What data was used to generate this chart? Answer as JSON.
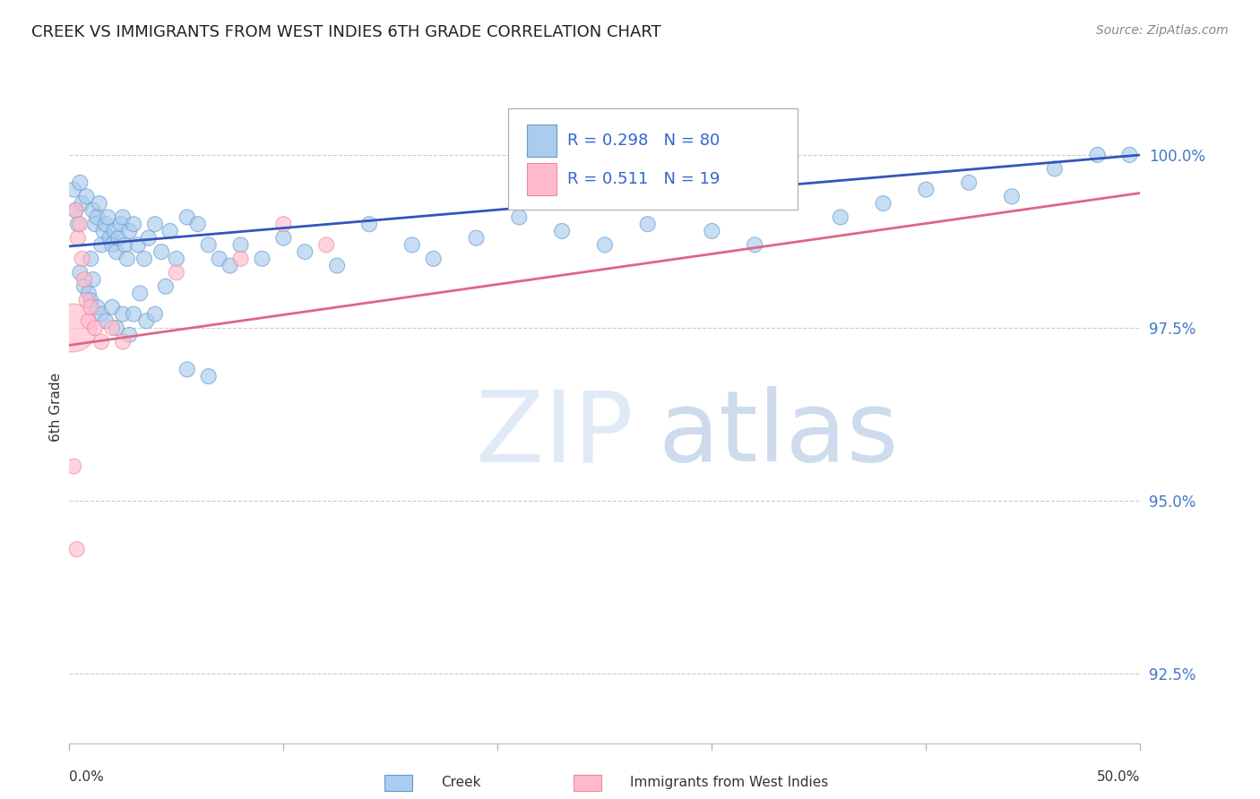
{
  "title": "CREEK VS IMMIGRANTS FROM WEST INDIES 6TH GRADE CORRELATION CHART",
  "source": "Source: ZipAtlas.com",
  "ylabel_left": "6th Grade",
  "xlim": [
    0.0,
    50.0
  ],
  "ylim": [
    91.5,
    101.2
  ],
  "yticks": [
    92.5,
    95.0,
    97.5,
    100.0
  ],
  "ytick_labels": [
    "92.5%",
    "95.0%",
    "97.5%",
    "100.0%"
  ],
  "creek_color": "#6699cc",
  "creek_color_fill": "#aabbdd",
  "immigrants_color": "#ee7799",
  "immigrants_color_fill": "#ffaabb",
  "trend_blue": "#3355bb",
  "trend_pink": "#dd6688",
  "legend_R_blue": "0.298",
  "legend_N_blue": "80",
  "legend_R_pink": "0.511",
  "legend_N_pink": "19",
  "bg_color": "#ffffff",
  "grid_color": "#cccccc",
  "blue_trend_y0": 98.68,
  "blue_trend_y1": 100.0,
  "pink_trend_y0": 97.25,
  "pink_trend_y1": 99.45,
  "creek_x": [
    0.2,
    0.3,
    0.4,
    0.5,
    0.6,
    0.8,
    1.0,
    1.1,
    1.2,
    1.3,
    1.4,
    1.5,
    1.6,
    1.7,
    1.8,
    1.9,
    2.0,
    2.1,
    2.2,
    2.3,
    2.4,
    2.5,
    2.6,
    2.7,
    2.8,
    3.0,
    3.2,
    3.5,
    3.7,
    4.0,
    4.3,
    4.7,
    5.0,
    5.5,
    6.0,
    6.5,
    7.0,
    7.5,
    8.0,
    9.0,
    10.0,
    11.0,
    12.5,
    14.0,
    16.0,
    17.0,
    19.0,
    21.0,
    23.0,
    25.0,
    27.0,
    30.0,
    32.0,
    36.0,
    38.0,
    40.0,
    42.0,
    44.0,
    46.0,
    48.0,
    49.5,
    0.5,
    0.7,
    0.9,
    1.0,
    1.1,
    1.3,
    1.5,
    1.7,
    2.0,
    2.2,
    2.5,
    2.8,
    3.0,
    3.3,
    3.6,
    4.0,
    4.5,
    5.5,
    6.5
  ],
  "creek_y": [
    99.5,
    99.2,
    99.0,
    99.6,
    99.3,
    99.4,
    98.5,
    99.2,
    99.0,
    99.1,
    99.3,
    98.7,
    98.9,
    99.0,
    99.1,
    98.8,
    98.7,
    98.9,
    98.6,
    98.8,
    99.0,
    99.1,
    98.7,
    98.5,
    98.9,
    99.0,
    98.7,
    98.5,
    98.8,
    99.0,
    98.6,
    98.9,
    98.5,
    99.1,
    99.0,
    98.7,
    98.5,
    98.4,
    98.7,
    98.5,
    98.8,
    98.6,
    98.4,
    99.0,
    98.7,
    98.5,
    98.8,
    99.1,
    98.9,
    98.7,
    99.0,
    98.9,
    98.7,
    99.1,
    99.3,
    99.5,
    99.6,
    99.4,
    99.8,
    100.0,
    100.0,
    98.3,
    98.1,
    98.0,
    97.9,
    98.2,
    97.8,
    97.7,
    97.6,
    97.8,
    97.5,
    97.7,
    97.4,
    97.7,
    98.0,
    97.6,
    97.7,
    98.1,
    96.9,
    96.8
  ],
  "creek_size": [
    60,
    60,
    60,
    60,
    60,
    60,
    60,
    60,
    60,
    60,
    60,
    60,
    60,
    60,
    60,
    60,
    60,
    60,
    60,
    60,
    60,
    60,
    60,
    60,
    60,
    60,
    60,
    60,
    60,
    60,
    60,
    60,
    60,
    60,
    60,
    60,
    60,
    60,
    60,
    60,
    60,
    60,
    60,
    60,
    60,
    60,
    60,
    60,
    60,
    60,
    60,
    60,
    60,
    60,
    60,
    60,
    60,
    60,
    60,
    60,
    60,
    60,
    60,
    60,
    60,
    60,
    60,
    60,
    60,
    60,
    60,
    60,
    60,
    60,
    60,
    60,
    60,
    60,
    60,
    60
  ],
  "immigrants_x": [
    0.15,
    0.3,
    0.4,
    0.5,
    0.6,
    0.7,
    0.8,
    0.9,
    1.0,
    1.2,
    1.5,
    2.0,
    2.5,
    5.0,
    8.0,
    10.0,
    12.0,
    0.2,
    0.35
  ],
  "immigrants_y": [
    97.5,
    99.2,
    98.8,
    99.0,
    98.5,
    98.2,
    97.9,
    97.6,
    97.8,
    97.5,
    97.3,
    97.5,
    97.3,
    98.3,
    98.5,
    99.0,
    98.7,
    95.5,
    94.3
  ],
  "immigrants_size": [
    600,
    60,
    60,
    60,
    60,
    60,
    60,
    60,
    60,
    60,
    60,
    60,
    60,
    60,
    60,
    60,
    60,
    60,
    60
  ]
}
